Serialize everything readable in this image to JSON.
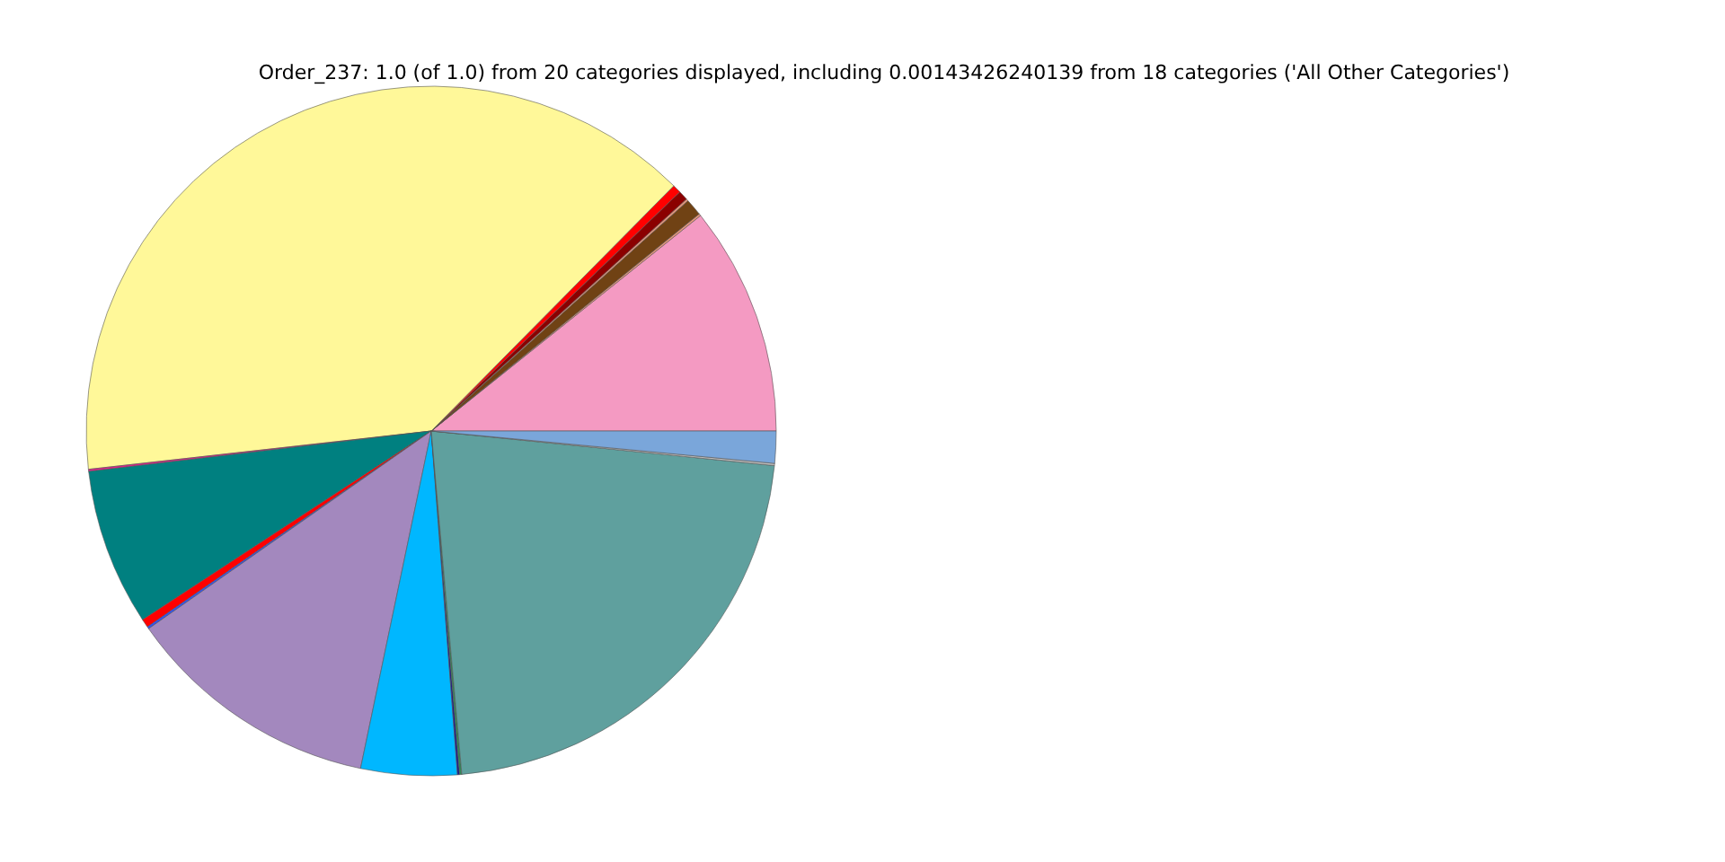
{
  "chart_data": {
    "type": "pie",
    "title": "Order_237: 1.0 (of 1.0) from 20 categories displayed, including 0.00143426240139 from 18 categories ('All Other Categories')",
    "categories": [
      null,
      null,
      null,
      null,
      null,
      null,
      null,
      null,
      null,
      null,
      null,
      null,
      null,
      null,
      null,
      null,
      null,
      null
    ],
    "values": [
      10.75,
      0.1,
      0.8,
      0.1,
      0.45,
      0.4,
      39.2,
      0.1,
      7.35,
      0.4,
      0.1,
      12.0,
      4.5,
      0.1,
      0.1,
      22.0,
      0.1,
      1.5
    ],
    "colors": [
      "#f49ac2",
      "#e9967a",
      "#704214",
      "#e9967a",
      "#8b0000",
      "#ff0000",
      "#fff899",
      "#e0218a",
      "#008080",
      "#ff0000",
      "#3050f8",
      "#a388be",
      "#00b7ff",
      "#1c1c8c",
      "#2e8b57",
      "#5fa09e",
      "#c0c0c0",
      "#7aa6da"
    ],
    "legend": false
  }
}
